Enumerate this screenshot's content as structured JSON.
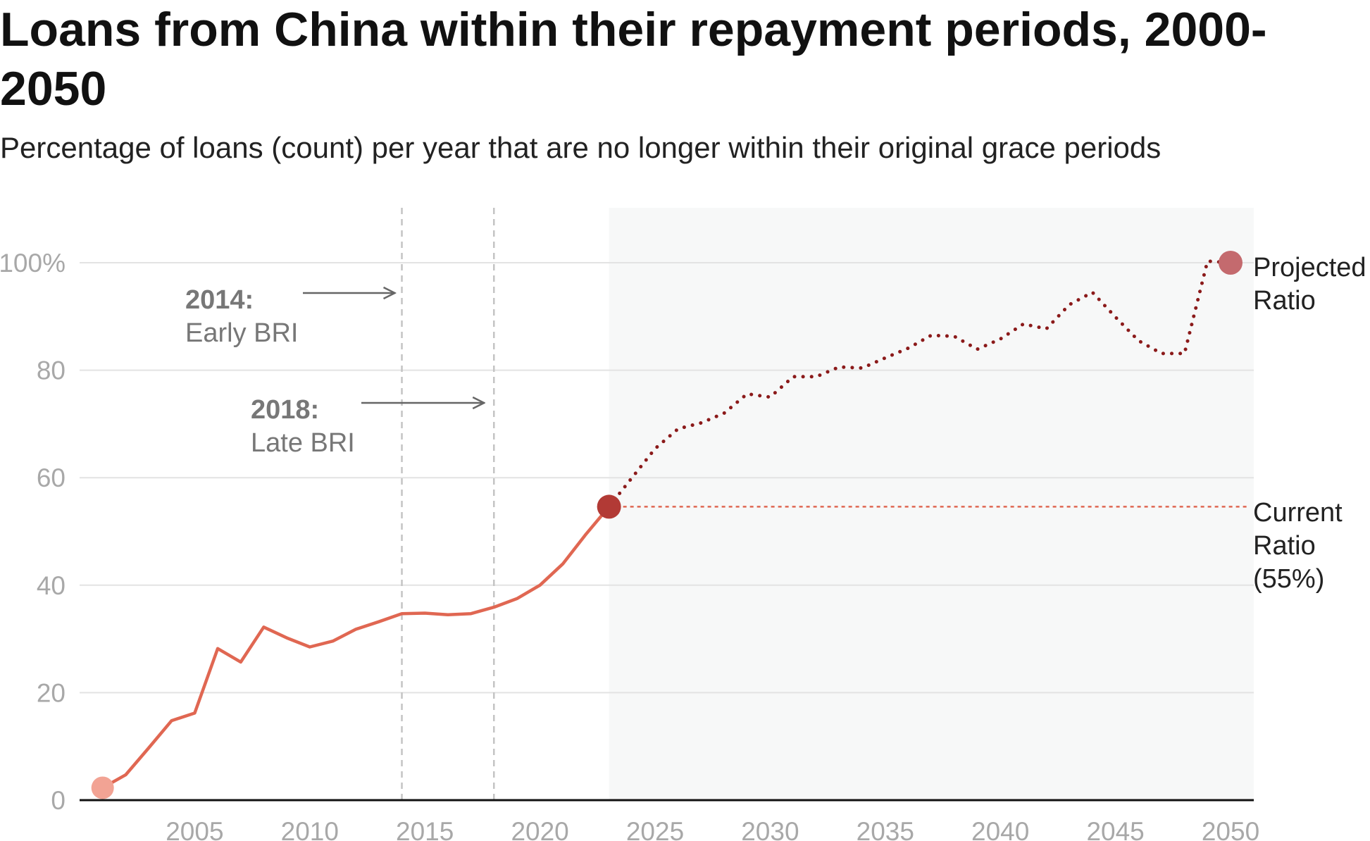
{
  "title": "Loans from China within their repayment periods, 2000-2050",
  "subtitle": "Percentage of loans (count) per year that are no longer within their original grace periods",
  "colors": {
    "historical_line": "#e06752",
    "projected_line": "#8b1a1a",
    "current_ratio_line": "#e06752",
    "start_dot": "#f2a394",
    "current_dot": "#b23a35",
    "end_dot": "#c46a6e",
    "projection_shading": "#f7f8f8",
    "gridline": "#e3e3e3",
    "axis": "#111111",
    "vline": "#c4c4c4",
    "arrow": "#666666"
  },
  "annotations": {
    "early_bri": {
      "year": "2014",
      "suffix": ":",
      "label": "Early BRI",
      "x": 2014
    },
    "late_bri": {
      "year": "2018",
      "suffix": ":",
      "label": "Late BRI",
      "x": 2018
    }
  },
  "labels": {
    "projected": [
      "Projected",
      "Ratio"
    ],
    "current": [
      "Current",
      "Ratio",
      "(55%)"
    ]
  },
  "chart_data": {
    "type": "line",
    "title": "Loans from China within their repayment periods, 2000-2050",
    "subtitle": "Percentage of loans (count) per year that are no longer within their original grace periods",
    "xlabel": "",
    "ylabel": "",
    "xlim": [
      1998,
      2050
    ],
    "ylim": [
      0,
      110
    ],
    "y_ticks": [
      0,
      20,
      40,
      60,
      80,
      100
    ],
    "y_tick_labels": [
      "0",
      "20",
      "40",
      "60",
      "80",
      "100%"
    ],
    "x_ticks": [
      2005,
      2010,
      2015,
      2020,
      2025,
      2030,
      2035,
      2040,
      2045,
      2050
    ],
    "x_tick_labels": [
      "2005",
      "2010",
      "2015",
      "2020",
      "2025",
      "2030",
      "2035",
      "2040",
      "2045",
      "2050"
    ],
    "grid": true,
    "projection_region": [
      2023,
      2050
    ],
    "current_ratio": 55,
    "series": [
      {
        "style": "solid",
        "x": [
          2001,
          2002,
          2003,
          2004,
          2005,
          2006,
          2007,
          2008,
          2009,
          2010,
          2011,
          2012,
          2013,
          2014,
          2015,
          2016,
          2017,
          2018,
          2019,
          2020,
          2021,
          2022,
          2023
        ],
        "y": [
          2.3,
          4.7,
          9.7,
          14.8,
          16.2,
          28.2,
          25.7,
          32.2,
          30.2,
          28.5,
          29.6,
          31.8,
          33.2,
          34.7,
          34.8,
          34.5,
          34.7,
          35.9,
          37.5,
          40.0,
          44.0,
          49.5,
          54.6
        ]
      },
      {
        "style": "dotted",
        "x": [
          2023,
          2024,
          2025,
          2026,
          2027,
          2028,
          2029,
          2030,
          2031,
          2032,
          2033,
          2034,
          2035,
          2036,
          2037,
          2038,
          2039,
          2040,
          2041,
          2042,
          2043,
          2044,
          2045,
          2046,
          2047,
          2048,
          2049,
          2050
        ],
        "y": [
          54.6,
          60.0,
          65.4,
          69.1,
          70.2,
          72.0,
          75.6,
          75.0,
          78.8,
          78.8,
          80.6,
          80.4,
          82.3,
          84.1,
          86.5,
          86.3,
          83.9,
          85.8,
          88.6,
          87.7,
          92.2,
          94.5,
          89.9,
          85.5,
          83.1,
          83.1,
          100.3,
          100.0
        ]
      }
    ]
  }
}
